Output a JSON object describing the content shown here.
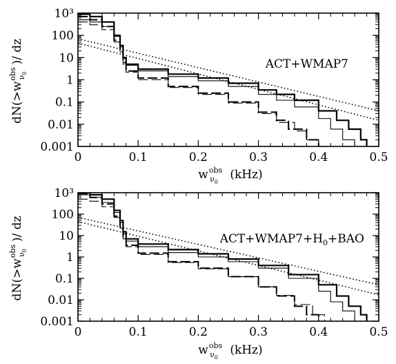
{
  "chart_data": [
    {
      "type": "line",
      "panel": "top",
      "annotation": "ACT+WMAP7",
      "xlabel": "w",
      "xlabel_sup": "obs",
      "xlabel_sub": "ν",
      "xlabel_subsub": "0",
      "xlabel_unit": "(kHz)",
      "ylabel": "dN(>w",
      "ylabel_sup": "obs",
      "ylabel_sub": "ν",
      "ylabel_subsub": "0",
      "ylabel_tail": ")/ dz",
      "xlim": [
        0,
        0.5
      ],
      "ylim": [
        0.001,
        1000
      ],
      "ylog": true,
      "xticks": [
        "0",
        "0.1",
        "0.2",
        "0.3",
        "0.4",
        "0.5"
      ],
      "yticks": [
        "0.001",
        "0.01",
        "0.1",
        "1",
        "10",
        "100",
        "10³"
      ],
      "series": [
        {
          "style": "thick",
          "x": [
            0.0,
            0.02,
            0.04,
            0.06,
            0.07,
            0.075,
            0.08,
            0.1,
            0.15,
            0.2,
            0.25,
            0.3,
            0.33,
            0.36,
            0.4,
            0.43,
            0.45,
            0.47,
            0.48
          ],
          "y": [
            900,
            700,
            400,
            100,
            35,
            10,
            5,
            3,
            1.8,
            1.2,
            0.7,
            0.35,
            0.22,
            0.12,
            0.04,
            0.015,
            0.006,
            0.002,
            0.001
          ]
        },
        {
          "style": "thin",
          "x": [
            0.0,
            0.02,
            0.04,
            0.06,
            0.07,
            0.075,
            0.08,
            0.1,
            0.15,
            0.2,
            0.25,
            0.3,
            0.33,
            0.36,
            0.4,
            0.42,
            0.44,
            0.46
          ],
          "y": [
            500,
            400,
            250,
            90,
            30,
            9,
            4.5,
            2.5,
            1.4,
            0.9,
            0.5,
            0.22,
            0.12,
            0.06,
            0.018,
            0.006,
            0.002,
            0.001
          ]
        },
        {
          "style": "thick-dashed",
          "x": [
            0.0,
            0.02,
            0.04,
            0.06,
            0.07,
            0.075,
            0.08,
            0.1,
            0.15,
            0.2,
            0.25,
            0.3,
            0.33,
            0.35,
            0.38,
            0.4
          ],
          "y": [
            700,
            500,
            250,
            60,
            20,
            6,
            2.5,
            1.2,
            0.5,
            0.25,
            0.1,
            0.035,
            0.015,
            0.006,
            0.002,
            0.001
          ]
        },
        {
          "style": "thin-dashed",
          "x": [
            0.0,
            0.02,
            0.04,
            0.06,
            0.07,
            0.075,
            0.08,
            0.1,
            0.15,
            0.2,
            0.25,
            0.3,
            0.33,
            0.36,
            0.38,
            0.4
          ],
          "y": [
            400,
            300,
            180,
            50,
            18,
            5,
            2.2,
            1.0,
            0.45,
            0.22,
            0.09,
            0.03,
            0.012,
            0.005,
            0.002,
            0.001
          ]
        },
        {
          "style": "dotted",
          "x": [
            0.0,
            0.5
          ],
          "y": [
            70,
            0.04
          ]
        },
        {
          "style": "dotted",
          "x": [
            0.0,
            0.5
          ],
          "y": [
            45,
            0.015
          ]
        }
      ]
    },
    {
      "type": "line",
      "panel": "bottom",
      "annotation": "ACT+WMAP7+H",
      "annotation_sub": "0",
      "annotation_tail": "+BAO",
      "xlabel": "w",
      "xlabel_sup": "obs",
      "xlabel_sub": "ν",
      "xlabel_subsub": "0",
      "xlabel_unit": "(kHz)",
      "ylabel": "dN(>w",
      "ylabel_sup": "obs",
      "ylabel_sub": "ν",
      "ylabel_subsub": "0",
      "ylabel_tail": ")/ dz",
      "xlim": [
        0,
        0.5
      ],
      "ylim": [
        0.001,
        1000
      ],
      "ylog": true,
      "xticks": [
        "0",
        "0.1",
        "0.2",
        "0.3",
        "0.4",
        "0.5"
      ],
      "yticks": [
        "0.001",
        "0.01",
        "0.1",
        "1",
        "10",
        "100",
        "10³"
      ],
      "series": [
        {
          "style": "thick",
          "x": [
            0.0,
            0.02,
            0.04,
            0.06,
            0.07,
            0.075,
            0.08,
            0.1,
            0.15,
            0.2,
            0.25,
            0.3,
            0.35,
            0.4,
            0.43,
            0.45,
            0.47,
            0.48
          ],
          "y": [
            1000,
            800,
            500,
            150,
            50,
            15,
            7,
            4,
            2.2,
            1.4,
            0.8,
            0.4,
            0.15,
            0.05,
            0.015,
            0.005,
            0.002,
            0.001
          ]
        },
        {
          "style": "thin",
          "x": [
            0.0,
            0.02,
            0.04,
            0.06,
            0.07,
            0.075,
            0.08,
            0.1,
            0.15,
            0.2,
            0.25,
            0.3,
            0.35,
            0.4,
            0.42,
            0.44,
            0.46
          ],
          "y": [
            800,
            600,
            350,
            120,
            40,
            12,
            5.5,
            3,
            1.6,
            1.0,
            0.6,
            0.3,
            0.1,
            0.025,
            0.008,
            0.003,
            0.001
          ]
        },
        {
          "style": "thick-dashed",
          "x": [
            0.0,
            0.02,
            0.04,
            0.06,
            0.07,
            0.075,
            0.08,
            0.1,
            0.15,
            0.2,
            0.25,
            0.3,
            0.33,
            0.36,
            0.38,
            0.4
          ],
          "y": [
            900,
            600,
            300,
            80,
            25,
            8,
            3.5,
            1.5,
            0.6,
            0.3,
            0.12,
            0.04,
            0.015,
            0.005,
            0.002,
            0.001
          ]
        },
        {
          "style": "thin-dashed",
          "x": [
            0.0,
            0.02,
            0.04,
            0.06,
            0.07,
            0.075,
            0.08,
            0.1,
            0.15,
            0.2,
            0.25,
            0.3,
            0.33,
            0.36,
            0.39,
            0.41
          ],
          "y": [
            500,
            400,
            220,
            70,
            22,
            7,
            3,
            1.3,
            0.55,
            0.28,
            0.12,
            0.04,
            0.016,
            0.006,
            0.002,
            0.001
          ]
        },
        {
          "style": "dotted",
          "x": [
            0.0,
            0.5
          ],
          "y": [
            70,
            0.05
          ]
        },
        {
          "style": "dotted",
          "x": [
            0.0,
            0.5
          ],
          "y": [
            45,
            0.017
          ]
        }
      ]
    }
  ]
}
